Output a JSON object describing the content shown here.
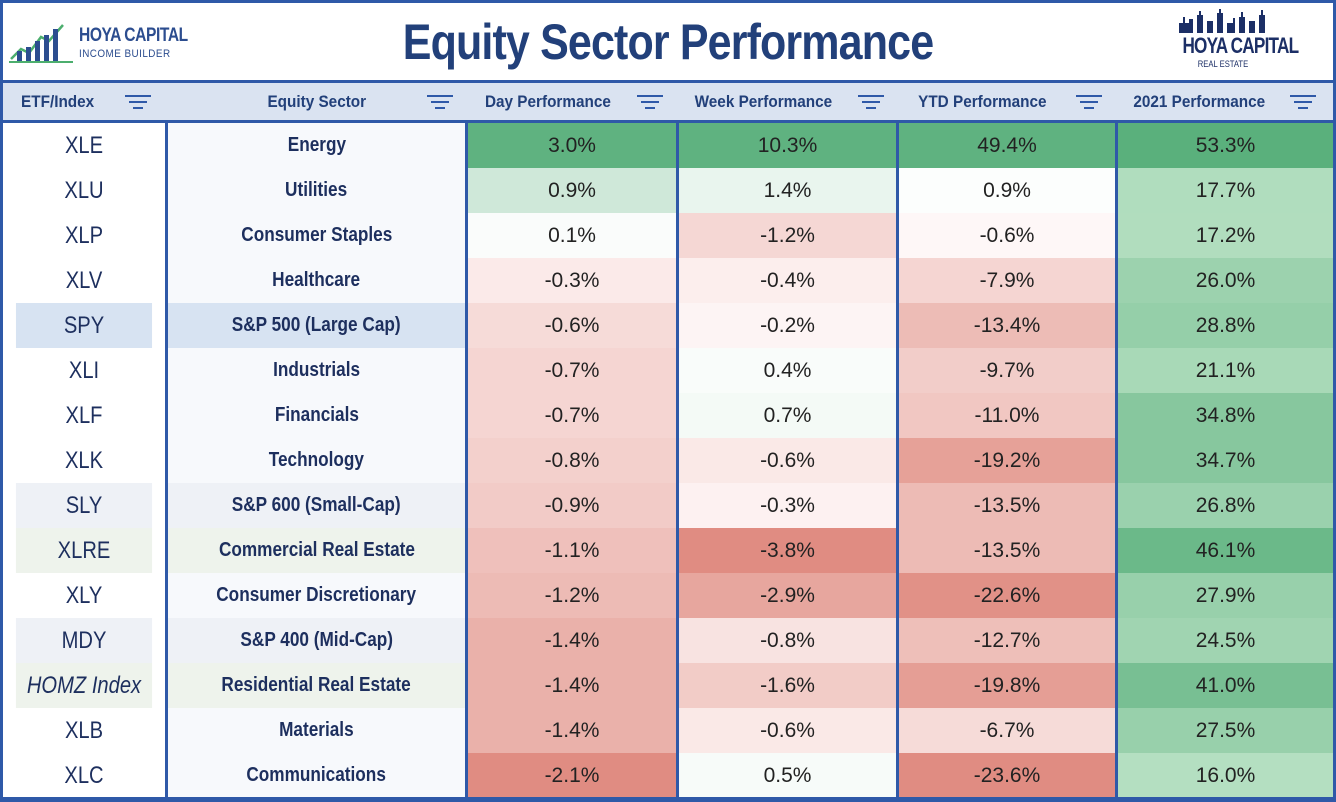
{
  "header": {
    "title": "Equity Sector Performance",
    "logo_left": {
      "line1": "HOYA CAPITAL",
      "line2": "INCOME BUILDER"
    },
    "logo_right": {
      "line1": "HOYA CAPITAL",
      "line2": "REAL ESTATE"
    }
  },
  "columns": [
    "ETF/Index",
    "Equity Sector",
    "Day Performance",
    "Week Performance",
    "YTD Performance",
    "2021 Performance"
  ],
  "rows": [
    {
      "ticker": "XLE",
      "sector": "Energy",
      "day": "3.0%",
      "week": "10.3%",
      "ytd": "49.4%",
      "y2021": "53.3%"
    },
    {
      "ticker": "XLU",
      "sector": "Utilities",
      "day": "0.9%",
      "week": "1.4%",
      "ytd": "0.9%",
      "y2021": "17.7%"
    },
    {
      "ticker": "XLP",
      "sector": "Consumer Staples",
      "day": "0.1%",
      "week": "-1.2%",
      "ytd": "-0.6%",
      "y2021": "17.2%"
    },
    {
      "ticker": "XLV",
      "sector": "Healthcare",
      "day": "-0.3%",
      "week": "-0.4%",
      "ytd": "-7.9%",
      "y2021": "26.0%"
    },
    {
      "ticker": "SPY",
      "sector": "S&P 500 (Large Cap)",
      "day": "-0.6%",
      "week": "-0.2%",
      "ytd": "-13.4%",
      "y2021": "28.8%"
    },
    {
      "ticker": "XLI",
      "sector": "Industrials",
      "day": "-0.7%",
      "week": "0.4%",
      "ytd": "-9.7%",
      "y2021": "21.1%"
    },
    {
      "ticker": "XLF",
      "sector": "Financials",
      "day": "-0.7%",
      "week": "0.7%",
      "ytd": "-11.0%",
      "y2021": "34.8%"
    },
    {
      "ticker": "XLK",
      "sector": "Technology",
      "day": "-0.8%",
      "week": "-0.6%",
      "ytd": "-19.2%",
      "y2021": "34.7%"
    },
    {
      "ticker": "SLY",
      "sector": "S&P 600 (Small-Cap)",
      "day": "-0.9%",
      "week": "-0.3%",
      "ytd": "-13.5%",
      "y2021": "26.8%"
    },
    {
      "ticker": "XLRE",
      "sector": "Commercial Real Estate",
      "day": "-1.1%",
      "week": "-3.8%",
      "ytd": "-13.5%",
      "y2021": "46.1%"
    },
    {
      "ticker": "XLY",
      "sector": "Consumer Discretionary",
      "day": "-1.2%",
      "week": "-2.9%",
      "ytd": "-22.6%",
      "y2021": "27.9%"
    },
    {
      "ticker": "MDY",
      "sector": "S&P 400 (Mid-Cap)",
      "day": "-1.4%",
      "week": "-0.8%",
      "ytd": "-12.7%",
      "y2021": "24.5%"
    },
    {
      "ticker": "HOMZ Index",
      "sector": "Residential Real Estate",
      "day": "-1.4%",
      "week": "-1.6%",
      "ytd": "-19.8%",
      "y2021": "41.0%"
    },
    {
      "ticker": "XLB",
      "sector": "Materials",
      "day": "-1.4%",
      "week": "-0.6%",
      "ytd": "-6.7%",
      "y2021": "27.5%"
    },
    {
      "ticker": "XLC",
      "sector": "Communications",
      "day": "-2.1%",
      "week": "0.5%",
      "ytd": "-23.6%",
      "y2021": "16.0%"
    }
  ],
  "colors": {
    "border": "#2f59a8",
    "header_fill": "#dae3f1",
    "title_text": "#22407a",
    "positive_max": "#5aae7a",
    "negative_max": "#e08a80",
    "neutral": "#ffffff"
  }
}
